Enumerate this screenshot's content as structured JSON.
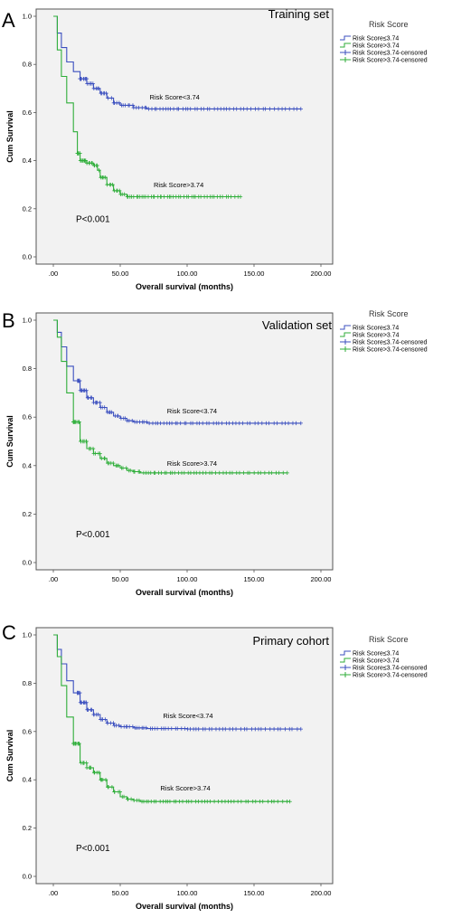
{
  "colors": {
    "low": "#3b4fbf",
    "high": "#2fae3a",
    "background": "#f2f2f2"
  },
  "chart_data": [
    {
      "type": "line",
      "panel_letter": "A",
      "title": "Training set",
      "xlabel": "Overall survival (months)",
      "ylabel": "Cum Survival",
      "xlim": [
        0,
        200
      ],
      "ylim": [
        0,
        1
      ],
      "x_ticks": [
        ".00",
        "50.00",
        "100.00",
        "150.00",
        "200.00"
      ],
      "y_ticks": [
        "0.0",
        "0.2",
        "0.4",
        "0.6",
        "0.8",
        "1.0"
      ],
      "p_value": "P<0.001",
      "legend": {
        "title": "Risk Score",
        "entries": [
          "Risk Score≤3.74",
          "Risk Score>3.74",
          "Risk Score≤3.74-censored",
          "Risk Score>3.74-censored"
        ]
      },
      "annotations": [
        {
          "text": "Risk Score<3.74",
          "x": 72,
          "y": 0.655
        },
        {
          "text": "Risk Score>3.74",
          "x": 75,
          "y": 0.29
        }
      ],
      "series": [
        {
          "name": "Risk Score≤3.74",
          "color_key": "low",
          "x": [
            0,
            3,
            6,
            10,
            15,
            20,
            25,
            30,
            35,
            40,
            45,
            50,
            60,
            70,
            100,
            150,
            185
          ],
          "y": [
            1.0,
            0.93,
            0.87,
            0.81,
            0.77,
            0.74,
            0.72,
            0.7,
            0.68,
            0.66,
            0.64,
            0.63,
            0.62,
            0.615,
            0.615,
            0.615,
            0.615
          ],
          "censor_from": 20,
          "censor_to": 185
        },
        {
          "name": "Risk Score>3.74",
          "color_key": "high",
          "x": [
            0,
            3,
            6,
            10,
            15,
            18,
            20,
            25,
            30,
            33,
            35,
            40,
            45,
            50,
            55,
            80,
            140
          ],
          "y": [
            1.0,
            0.86,
            0.75,
            0.64,
            0.52,
            0.43,
            0.4,
            0.39,
            0.38,
            0.36,
            0.33,
            0.3,
            0.275,
            0.26,
            0.25,
            0.25,
            0.25
          ],
          "censor_from": 18,
          "censor_to": 140
        }
      ]
    },
    {
      "type": "line",
      "panel_letter": "B",
      "title": "Validation set",
      "xlabel": "Overall survival (months)",
      "ylabel": "Cum Survival",
      "xlim": [
        0,
        200
      ],
      "ylim": [
        0,
        1
      ],
      "x_ticks": [
        ".00",
        "50.00",
        "100.00",
        "150.00",
        "200.00"
      ],
      "y_ticks": [
        "0.0",
        "0.2",
        "0.4",
        "0.6",
        "0.8",
        "1.0"
      ],
      "p_value": "P<0.001",
      "legend": {
        "title": "Risk Score",
        "entries": [
          "Risk Score≤3.74",
          "Risk Score>3.74",
          "Risk Score≤3.74-censored",
          "Risk Score>3.74-censored"
        ]
      },
      "annotations": [
        {
          "text": "Risk Score<3.74",
          "x": 85,
          "y": 0.615
        },
        {
          "text": "Risk Score>3.74",
          "x": 85,
          "y": 0.4
        }
      ],
      "series": [
        {
          "name": "Risk Score≤3.74",
          "color_key": "low",
          "x": [
            0,
            3,
            6,
            10,
            15,
            20,
            25,
            30,
            35,
            40,
            45,
            50,
            55,
            60,
            70,
            100,
            150,
            185
          ],
          "y": [
            1.0,
            0.95,
            0.89,
            0.81,
            0.75,
            0.71,
            0.68,
            0.66,
            0.64,
            0.62,
            0.605,
            0.595,
            0.585,
            0.58,
            0.575,
            0.575,
            0.575,
            0.575
          ],
          "censor_from": 18,
          "censor_to": 185
        },
        {
          "name": "Risk Score>3.74",
          "color_key": "high",
          "x": [
            0,
            3,
            6,
            10,
            15,
            20,
            25,
            30,
            35,
            40,
            45,
            50,
            55,
            60,
            65,
            100,
            150,
            175
          ],
          "y": [
            1.0,
            0.93,
            0.83,
            0.7,
            0.58,
            0.5,
            0.47,
            0.45,
            0.43,
            0.41,
            0.4,
            0.39,
            0.38,
            0.375,
            0.37,
            0.37,
            0.37,
            0.37
          ],
          "censor_from": 15,
          "censor_to": 175
        }
      ]
    },
    {
      "type": "line",
      "panel_letter": "C",
      "title": "Primary cohort",
      "xlabel": "Overall survival (months)",
      "ylabel": "Cum Survival",
      "xlim": [
        0,
        200
      ],
      "ylim": [
        0,
        1
      ],
      "x_ticks": [
        ".00",
        "50.00",
        "100.00",
        "150.00",
        "200.00"
      ],
      "y_ticks": [
        "0.0",
        "0.2",
        "0.4",
        "0.6",
        "0.8",
        "1.0"
      ],
      "p_value": "P<0.001",
      "legend": {
        "title": "Risk Score",
        "entries": [
          "Risk Score≤3.74",
          "Risk Score>3.74",
          "Risk Score≤3.74-censored",
          "Risk Score>3.74-censored"
        ]
      },
      "annotations": [
        {
          "text": "Risk Score<3.74",
          "x": 82,
          "y": 0.655
        },
        {
          "text": "Risk Score>3.74",
          "x": 80,
          "y": 0.355
        }
      ],
      "series": [
        {
          "name": "Risk Score≤3.74",
          "color_key": "low",
          "x": [
            0,
            3,
            6,
            10,
            15,
            20,
            25,
            30,
            35,
            40,
            45,
            50,
            60,
            70,
            100,
            150,
            185
          ],
          "y": [
            1.0,
            0.94,
            0.88,
            0.81,
            0.76,
            0.72,
            0.69,
            0.67,
            0.65,
            0.635,
            0.625,
            0.62,
            0.615,
            0.612,
            0.61,
            0.61,
            0.61
          ],
          "censor_from": 18,
          "censor_to": 185
        },
        {
          "name": "Risk Score>3.74",
          "color_key": "high",
          "x": [
            0,
            3,
            6,
            10,
            15,
            20,
            25,
            30,
            35,
            40,
            45,
            50,
            55,
            60,
            65,
            100,
            150,
            177
          ],
          "y": [
            1.0,
            0.91,
            0.79,
            0.66,
            0.55,
            0.47,
            0.45,
            0.43,
            0.4,
            0.37,
            0.35,
            0.33,
            0.32,
            0.315,
            0.31,
            0.31,
            0.31,
            0.31
          ],
          "censor_from": 15,
          "censor_to": 177
        }
      ]
    }
  ]
}
